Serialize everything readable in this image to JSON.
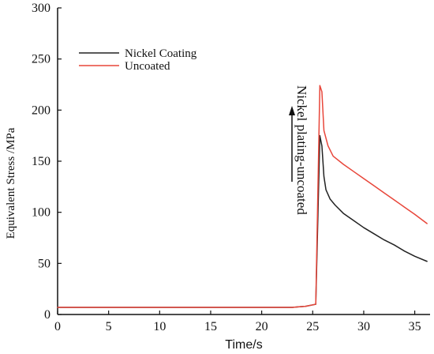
{
  "chart_data": {
    "type": "line",
    "title": "",
    "xlabel": "Time/s",
    "ylabel": "Equivalent Stress /MPa",
    "xlim": [
      0,
      36.5
    ],
    "ylim": [
      0,
      300
    ],
    "x_ticks": [
      0,
      5,
      10,
      15,
      20,
      25,
      30,
      35
    ],
    "y_ticks": [
      0,
      50,
      100,
      150,
      200,
      250,
      300
    ],
    "x_tick_labels": [
      "0",
      "5",
      "10",
      "15",
      "20",
      "25",
      "30",
      "35"
    ],
    "y_tick_labels": [
      "0",
      "50",
      "100",
      "150",
      "200",
      "250",
      "300"
    ],
    "grid": false,
    "legend_position": "top-left",
    "annotation": {
      "text": "Nickel plating-uncoated",
      "arrow": "up"
    },
    "series": [
      {
        "name": "Nickel Coating",
        "color": "#222222",
        "points": [
          [
            0,
            7
          ],
          [
            5,
            7
          ],
          [
            10,
            7
          ],
          [
            15,
            7
          ],
          [
            20,
            7
          ],
          [
            23,
            7
          ],
          [
            24.3,
            8
          ],
          [
            25.3,
            10
          ],
          [
            25.7,
            175
          ],
          [
            25.9,
            165
          ],
          [
            26.1,
            135
          ],
          [
            26.3,
            122
          ],
          [
            26.7,
            113
          ],
          [
            27.2,
            107
          ],
          [
            28,
            99
          ],
          [
            29,
            92
          ],
          [
            30,
            85
          ],
          [
            31,
            79
          ],
          [
            32,
            73
          ],
          [
            33,
            68
          ],
          [
            34,
            62
          ],
          [
            35,
            57
          ],
          [
            36.2,
            52
          ]
        ]
      },
      {
        "name": "Uncoated",
        "color": "#e8463a",
        "points": [
          [
            0,
            7
          ],
          [
            5,
            7
          ],
          [
            10,
            7
          ],
          [
            15,
            7
          ],
          [
            20,
            7
          ],
          [
            23,
            7
          ],
          [
            24.3,
            8
          ],
          [
            25.3,
            10
          ],
          [
            25.7,
            224
          ],
          [
            25.9,
            218
          ],
          [
            26.1,
            180
          ],
          [
            26.5,
            165
          ],
          [
            27,
            155
          ],
          [
            28,
            147
          ],
          [
            29,
            140
          ],
          [
            30,
            133
          ],
          [
            31,
            126
          ],
          [
            32,
            119
          ],
          [
            33,
            112
          ],
          [
            34,
            105
          ],
          [
            35,
            98
          ],
          [
            36.2,
            89
          ]
        ]
      }
    ]
  }
}
